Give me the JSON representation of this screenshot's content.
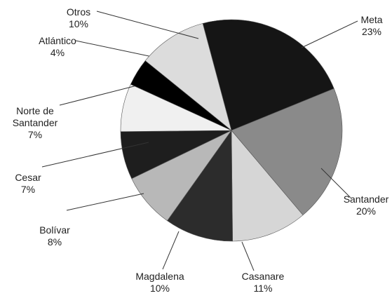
{
  "chart_data": {
    "type": "pie",
    "categories": [
      "Meta",
      "Santander",
      "Casanare",
      "Magdalena",
      "Bolívar",
      "Cesar",
      "Norte de Santander",
      "Atlántico",
      "Otros"
    ],
    "values": [
      23,
      20,
      11,
      10,
      8,
      7,
      7,
      4,
      10
    ],
    "value_labels": [
      "23%",
      "20%",
      "11%",
      "10%",
      "8%",
      "7%",
      "7%",
      "4%",
      "10%"
    ],
    "colors": [
      "#151515",
      "#8a8a8a",
      "#d6d6d6",
      "#2c2c2c",
      "#b8b8b8",
      "#1e1e1e",
      "#f0f0f0",
      "#000000",
      "#dcdcdc"
    ]
  }
}
